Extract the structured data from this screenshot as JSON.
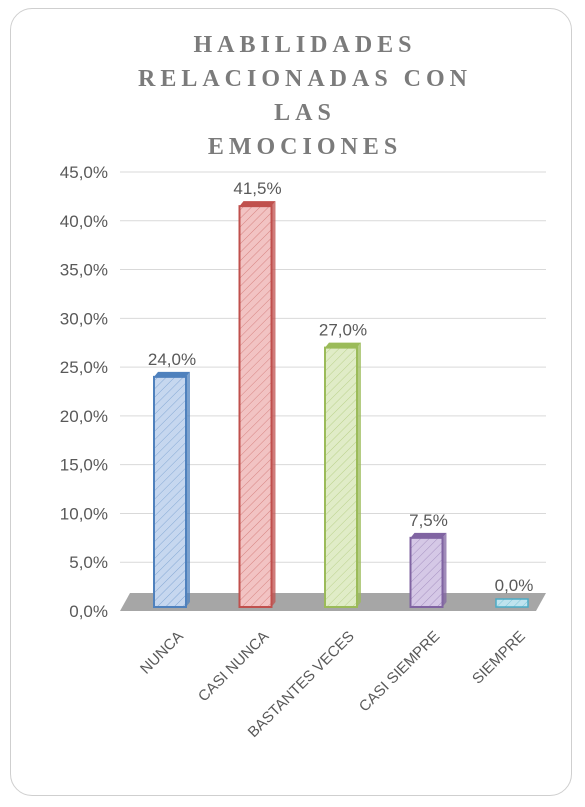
{
  "chart_data": {
    "type": "bar",
    "title_lines": [
      "HABILIDADES",
      "RELACIONADAS CON LAS",
      "EMOCIONES"
    ],
    "categories": [
      "NUNCA",
      "CASI NUNCA",
      "BASTANTES VECES",
      "CASI SIEMPRE",
      "SIEMPRE"
    ],
    "values": [
      24.0,
      41.5,
      27.0,
      7.5,
      0.0
    ],
    "data_labels": [
      "24,0%",
      "41,5%",
      "27,0%",
      "7,5%",
      "0,0%"
    ],
    "y_ticks": [
      "0,0%",
      "5,0%",
      "10,0%",
      "15,0%",
      "20,0%",
      "25,0%",
      "30,0%",
      "35,0%",
      "40,0%",
      "45,0%"
    ],
    "ylim": [
      0,
      45
    ],
    "grid": true,
    "legend": "none",
    "colors": {
      "bars": [
        "#4f81bd",
        "#c0504d",
        "#9bbb59",
        "#8064a2",
        "#4bacc6"
      ],
      "fills": [
        "#c6d7ef",
        "#f2c3c3",
        "#e0ecc7",
        "#d5c8e6",
        "#bfe3ee"
      ],
      "floor": "#a6a6a6",
      "grid": "#d9d9d9",
      "title": "#7b7b7b",
      "text": "#595959"
    }
  }
}
